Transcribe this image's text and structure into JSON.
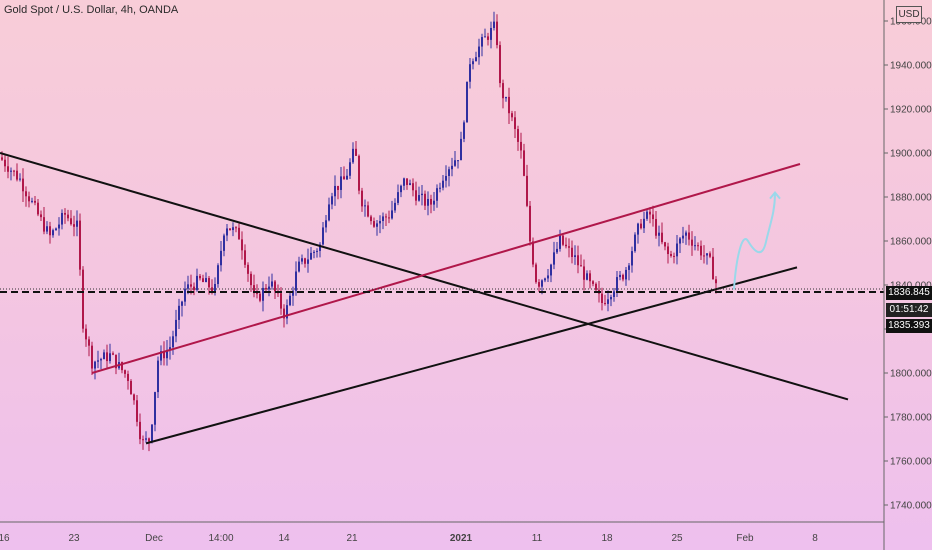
{
  "header": {
    "title": "Gold Spot / U.S. Dollar, 4h, OANDA",
    "currency": "USD"
  },
  "price_tags": {
    "last": "1836.845",
    "countdown": "01:51:42",
    "low": "1835.393"
  },
  "colors": {
    "bull": "#2f2fa0",
    "bear": "#b0174a",
    "red_channel": "#b0174a",
    "black_line": "#111111",
    "projection": "#9ad8ea"
  },
  "chart_data": {
    "type": "candlestick",
    "title": "Gold Spot / U.S. Dollar, 4h, OANDA",
    "xlabel": "",
    "ylabel": "",
    "ylim": [
      1730,
      2010
    ],
    "y_ticks": [
      "1740.000",
      "1760.000",
      "1780.000",
      "1800.000",
      "1820.000",
      "1840.000",
      "1860.000",
      "1880.000",
      "1900.000",
      "1920.000",
      "1940.000",
      "1960.000"
    ],
    "x_ticks": [
      "16",
      "23",
      "Dec",
      "14:00",
      "14",
      "21",
      "2021",
      "11",
      "18",
      "25",
      "Feb",
      "8"
    ],
    "price_path": [
      [
        0,
        1898
      ],
      [
        20,
        1888
      ],
      [
        40,
        1870
      ],
      [
        50,
        1862
      ],
      [
        65,
        1872
      ],
      [
        78,
        1866
      ],
      [
        82,
        1825
      ],
      [
        92,
        1805
      ],
      [
        110,
        1808
      ],
      [
        128,
        1798
      ],
      [
        135,
        1785
      ],
      [
        142,
        1768
      ],
      [
        150,
        1770
      ],
      [
        158,
        1806
      ],
      [
        170,
        1812
      ],
      [
        185,
        1838
      ],
      [
        200,
        1842
      ],
      [
        215,
        1838
      ],
      [
        225,
        1868
      ],
      [
        240,
        1862
      ],
      [
        255,
        1832
      ],
      [
        270,
        1842
      ],
      [
        285,
        1826
      ],
      [
        298,
        1848
      ],
      [
        320,
        1858
      ],
      [
        330,
        1882
      ],
      [
        345,
        1888
      ],
      [
        355,
        1902
      ],
      [
        360,
        1880
      ],
      [
        375,
        1868
      ],
      [
        390,
        1872
      ],
      [
        405,
        1888
      ],
      [
        418,
        1880
      ],
      [
        430,
        1876
      ],
      [
        445,
        1892
      ],
      [
        460,
        1900
      ],
      [
        470,
        1942
      ],
      [
        485,
        1952
      ],
      [
        496,
        1958
      ],
      [
        500,
        1930
      ],
      [
        510,
        1918
      ],
      [
        522,
        1898
      ],
      [
        530,
        1860
      ],
      [
        537,
        1840
      ],
      [
        550,
        1848
      ],
      [
        560,
        1860
      ],
      [
        575,
        1852
      ],
      [
        590,
        1840
      ],
      [
        602,
        1832
      ],
      [
        615,
        1840
      ],
      [
        625,
        1846
      ],
      [
        640,
        1868
      ],
      [
        650,
        1872
      ],
      [
        660,
        1860
      ],
      [
        670,
        1852
      ],
      [
        685,
        1864
      ],
      [
        700,
        1856
      ],
      [
        710,
        1850
      ],
      [
        718,
        1838
      ]
    ],
    "current_price": 1836.845,
    "lines": [
      {
        "name": "",
        "color": "black",
        "points": [
          [
            0,
            1900
          ],
          [
            848,
            1788
          ]
        ]
      },
      {
        "name": "",
        "color": "black",
        "points": [
          [
            146,
            1768
          ],
          [
            797,
            1848
          ]
        ]
      },
      {
        "name": "",
        "color": "red",
        "points": [
          [
            92,
            1800
          ],
          [
            800,
            1895
          ]
        ]
      }
    ],
    "projection_path": [
      [
        734,
        1838
      ],
      [
        742,
        1860
      ],
      [
        762,
        1856
      ],
      [
        775,
        1882
      ]
    ]
  }
}
